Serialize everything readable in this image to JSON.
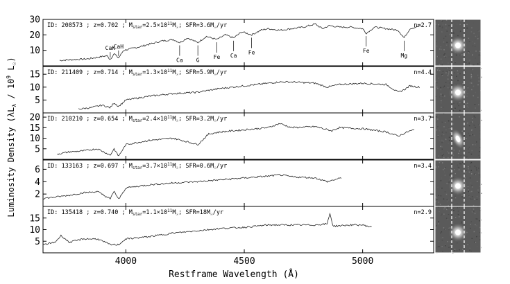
{
  "chart_data": {
    "type": "line",
    "xlabel": "Restframe Wavelength (Å)",
    "ylabel": "Luminosity Density (λL",
    "ylabel_lambda_sub": "λ",
    "ylabel_tail": " / 10",
    "ylabel_exp": "9",
    "ylabel_lsun": " L",
    "ylabel_close": ")",
    "xlim": [
      3650,
      5300
    ],
    "xticks": [
      4000,
      4500,
      5000
    ],
    "xtick_labels": [
      "4000",
      "4500",
      "5000"
    ],
    "line_labels": [
      {
        "text": "CaK",
        "x": 3934
      },
      {
        "text": "CaH",
        "x": 3969
      },
      {
        "text": "Ca",
        "x": 4227
      },
      {
        "text": "G",
        "x": 4304
      },
      {
        "text": "Fe",
        "x": 4384
      },
      {
        "text": "Ca",
        "x": 4455
      },
      {
        "text": "Fe",
        "x": 4531
      },
      {
        "text": "Fe",
        "x": 5015
      },
      {
        "text": "Mg",
        "x": 5175
      }
    ],
    "panels": [
      {
        "id_text": "ID: 208573 ; z=0.702 ; M",
        "mass_text": "=2.5×10",
        "mass_exp": "11",
        "sfr_text": "; SFR=3.6M",
        "sfr_unit": "/yr",
        "n_label": "n=2.7",
        "ylim": [
          0,
          30
        ],
        "yticks": [
          10,
          20,
          30
        ],
        "x": [
          3720,
          3780,
          3840,
          3880,
          3920,
          3934,
          3950,
          3969,
          3990,
          4050,
          4100,
          4150,
          4200,
          4227,
          4260,
          4304,
          4340,
          4384,
          4420,
          4455,
          4490,
          4531,
          4570,
          4600,
          4650,
          4700,
          4750,
          4800,
          4830,
          4860,
          4900,
          4950,
          5000,
          5015,
          5050,
          5100,
          5150,
          5175,
          5200,
          5250
        ],
        "y": [
          3.5,
          4,
          4.5,
          5.5,
          6.5,
          4,
          8,
          5,
          10,
          12,
          14,
          16,
          17,
          15,
          18,
          15,
          19,
          17,
          20,
          18,
          22,
          20,
          23,
          24,
          23,
          24,
          25,
          27,
          24,
          26,
          25,
          25,
          24,
          21,
          25,
          24,
          23,
          18,
          24,
          26
        ]
      },
      {
        "id_text": "ID: 211409 ; z=0.714 ; M",
        "mass_text": "=1.3×10",
        "mass_exp": "11",
        "sfr_text": "; SFR=5.9M",
        "sfr_unit": "/yr",
        "n_label": "n=4.4",
        "ylim": [
          0,
          18
        ],
        "yticks": [
          5,
          10,
          15
        ],
        "x": [
          3800,
          3850,
          3900,
          3934,
          3950,
          3969,
          4000,
          4100,
          4200,
          4300,
          4400,
          4500,
          4600,
          4650,
          4700,
          4800,
          4850,
          4900,
          5000,
          5100,
          5150,
          5175,
          5200,
          5240
        ],
        "y": [
          1.5,
          2,
          3,
          2,
          4,
          2.5,
          5,
          6.5,
          7.5,
          8,
          9.5,
          10.5,
          11.5,
          12,
          12,
          11.5,
          10,
          11,
          11.5,
          11,
          8,
          9,
          10.5,
          10
        ]
      },
      {
        "id_text": "ID: 210210 ; z=0.654 ; M",
        "mass_text": "=2.4×10",
        "mass_exp": "11",
        "sfr_text": "; SFR=3.2M",
        "sfr_unit": "/yr",
        "n_label": "n=3.7",
        "ylim": [
          0,
          22
        ],
        "yticks": [
          5,
          10,
          15,
          20
        ],
        "x": [
          3710,
          3760,
          3820,
          3880,
          3934,
          3950,
          3969,
          4000,
          4100,
          4200,
          4304,
          4350,
          4400,
          4500,
          4600,
          4650,
          4700,
          4800,
          4870,
          4900,
          5000,
          5100,
          5150,
          5200,
          5220
        ],
        "y": [
          2.5,
          3.5,
          4,
          5,
          2,
          5,
          1.5,
          7,
          9,
          10,
          7,
          12,
          13,
          14,
          15,
          17,
          15,
          15.5,
          13.5,
          15,
          14.5,
          13,
          11,
          13.5,
          14
        ]
      },
      {
        "id_text": "ID: 133163 ; z=0.697 ; M",
        "mass_text": "=3.7×10",
        "mass_exp": "11",
        "sfr_text": "; SFR=0.6M",
        "sfr_unit": "/yr",
        "n_label": "n=3.4",
        "ylim": [
          0,
          7.5
        ],
        "yticks": [
          2,
          4,
          6
        ],
        "x": [
          3650,
          3700,
          3760,
          3820,
          3880,
          3934,
          3950,
          3969,
          4000,
          4100,
          4200,
          4300,
          4400,
          4500,
          4600,
          4650,
          4700,
          4800,
          4850,
          4880,
          4910
        ],
        "y": [
          1.3,
          1.5,
          1.8,
          2.2,
          2.4,
          1.2,
          2.5,
          1.1,
          3,
          3.5,
          3.8,
          4,
          4.3,
          4.6,
          4.9,
          5.1,
          4.8,
          4.6,
          4,
          4.3,
          4.6
        ]
      },
      {
        "id_text": "ID: 135418 ; z=0.740 ; M",
        "mass_text": "=1.1×10",
        "mass_exp": "11",
        "sfr_text": "; SFR=18M",
        "sfr_unit": "/yr",
        "n_label": "n=2.9",
        "ylim": [
          0,
          20
        ],
        "yticks": [
          5,
          10,
          15
        ],
        "x": [
          3650,
          3700,
          3727,
          3760,
          3820,
          3880,
          3934,
          3969,
          4000,
          4100,
          4200,
          4300,
          4400,
          4500,
          4600,
          4700,
          4800,
          4850,
          4862,
          4875,
          4950,
          5000,
          5040
        ],
        "y": [
          3.5,
          4.5,
          7.5,
          4.5,
          6,
          6,
          3.5,
          3.5,
          6,
          7,
          8.5,
          9.5,
          10.5,
          11,
          12,
          12,
          12,
          12.5,
          17,
          11.5,
          12,
          12,
          11
        ]
      }
    ]
  }
}
